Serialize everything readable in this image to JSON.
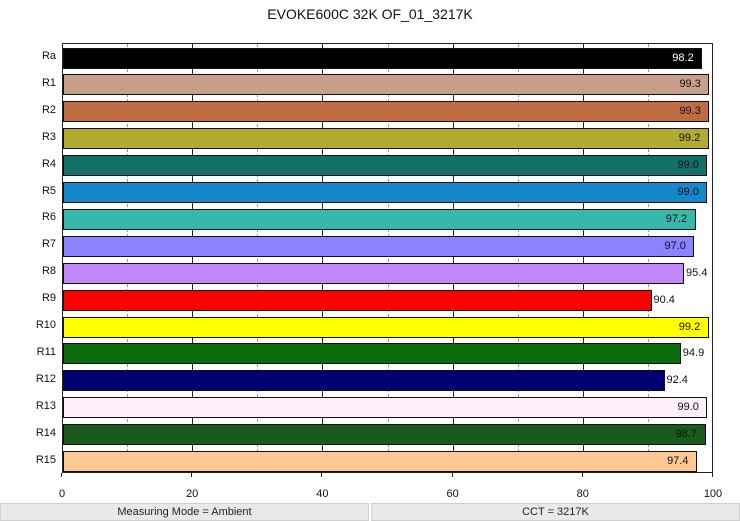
{
  "title": "EVOKE600C 32K OF_01_3217K",
  "footer": {
    "measuring_mode": "Measuring Mode = Ambient",
    "cct": "CCT = 3217K"
  },
  "chart_data": {
    "type": "bar",
    "orientation": "horizontal",
    "title": "EVOKE600C 32K OF_01_3217K",
    "xlabel": "",
    "ylabel": "",
    "xlim": [
      0,
      100
    ],
    "xticks": [
      "0",
      "20",
      "40",
      "60",
      "80",
      "100"
    ],
    "grid": {
      "major": [
        20,
        40,
        60,
        80
      ],
      "minor": [
        10,
        30,
        50,
        70,
        90
      ]
    },
    "categories": [
      "Ra",
      "R1",
      "R2",
      "R3",
      "R4",
      "R5",
      "R6",
      "R7",
      "R8",
      "R9",
      "R10",
      "R11",
      "R12",
      "R13",
      "R14",
      "R15"
    ],
    "values": [
      98.2,
      99.3,
      99.3,
      99.2,
      99.0,
      99.0,
      97.2,
      97.0,
      95.4,
      90.4,
      99.2,
      94.9,
      92.4,
      99.0,
      98.7,
      97.4
    ],
    "labels": [
      "98.2",
      "99.3",
      "99.3",
      "99.2",
      "99.0",
      "99.0",
      "97.2",
      "97.0",
      "95.4",
      "90.4",
      "99.2",
      "94.9",
      "92.4",
      "99.0",
      "98.7",
      "97.4"
    ],
    "colors": [
      "#000000",
      "#c8a08a",
      "#bf6d42",
      "#b3ab30",
      "#127068",
      "#1488c8",
      "#36b8ac",
      "#8a82fe",
      "#c088fa",
      "#fe0000",
      "#ffff00",
      "#0a6b0c",
      "#000070",
      "#fff0fc",
      "#1a5a1a",
      "#ffc994"
    ],
    "label_colors": [
      "#ffffff",
      "#111111",
      "#111111",
      "#111111",
      "#111111",
      "#111111",
      "#111111",
      "#111111",
      "#111111",
      "#111111",
      "#111111",
      "#111111",
      "#111111",
      "#111111",
      "#111111",
      "#111111"
    ],
    "label_inside": [
      true,
      true,
      true,
      true,
      true,
      true,
      true,
      true,
      false,
      false,
      true,
      false,
      false,
      true,
      true,
      true
    ]
  }
}
